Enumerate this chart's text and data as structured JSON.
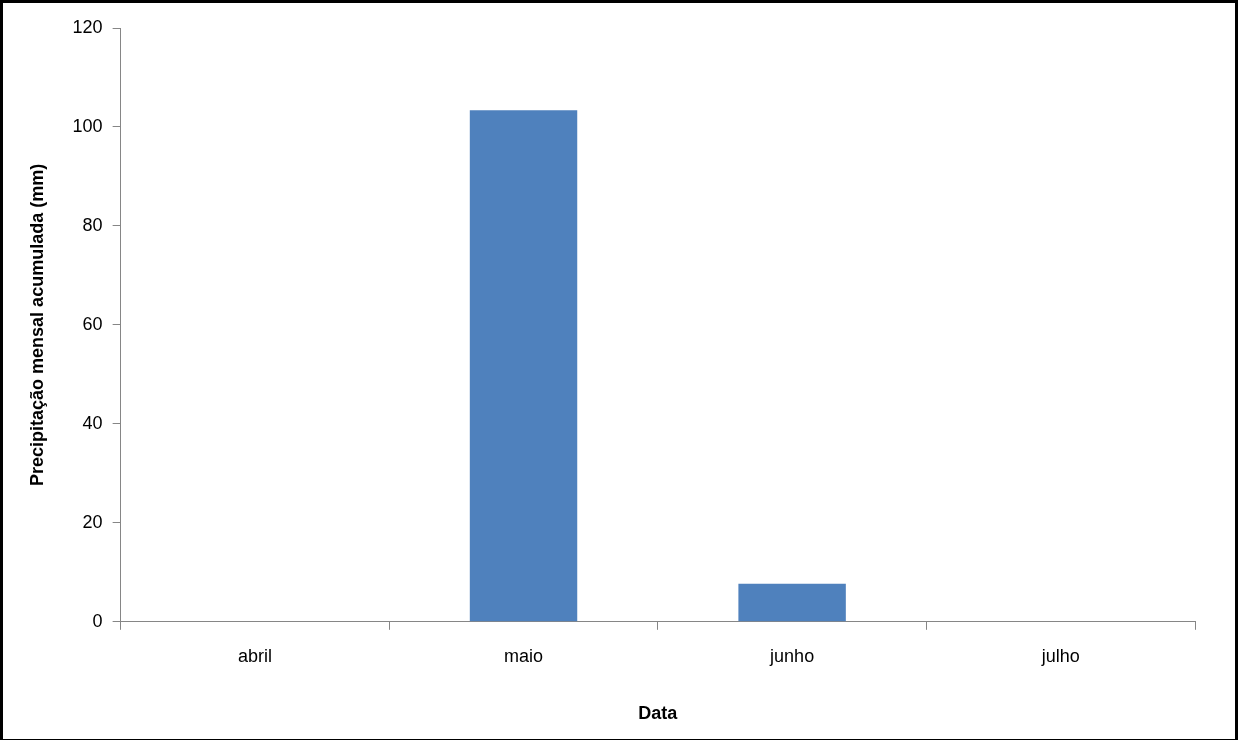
{
  "chart_data": {
    "type": "bar",
    "xlabel": "Data",
    "ylabel": "Precipitação mensal acumulada (mm)",
    "categories": [
      "abril",
      "maio",
      "junho",
      "julho"
    ],
    "values": [
      0,
      103.4,
      7.7,
      0
    ],
    "color": "#4f81bd",
    "ylim": [
      0,
      120
    ],
    "yticks": [
      0,
      20,
      40,
      60,
      80,
      100,
      120
    ],
    "grid": false,
    "legend": false
  }
}
